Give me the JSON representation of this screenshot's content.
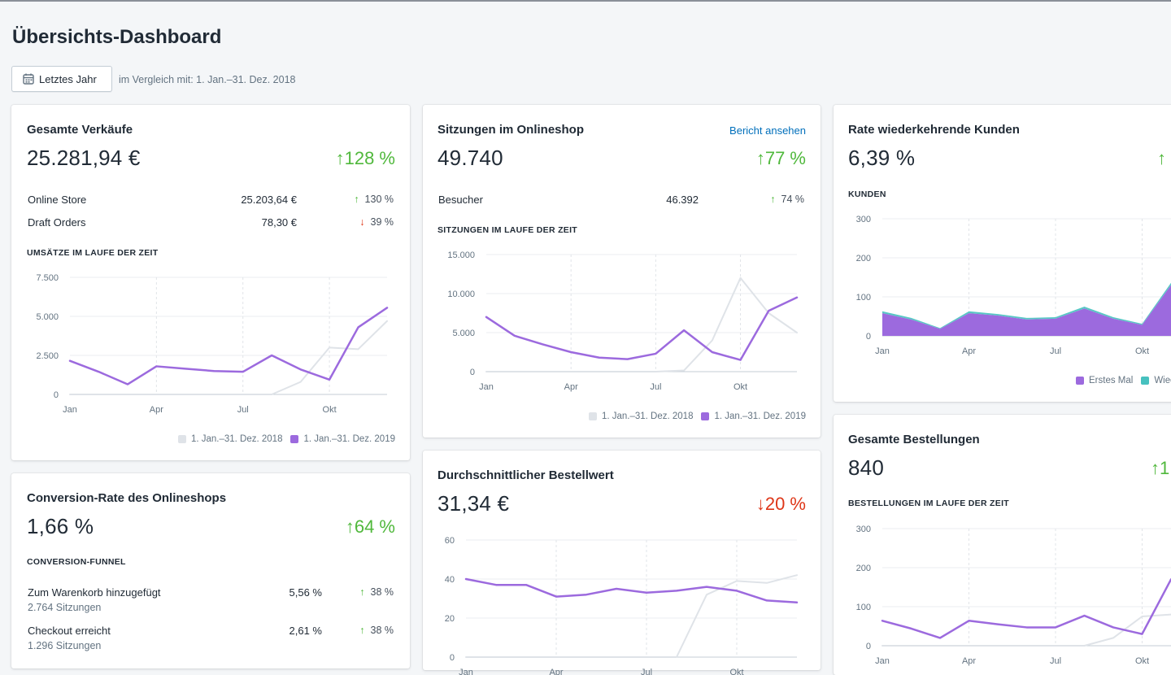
{
  "page": {
    "title": "Übersichts-Dashboard",
    "date_button": "Letztes Jahr",
    "compare_text": "im Vergleich mit: 1. Jan.–31. Dez. 2018"
  },
  "colors": {
    "series_current": "#9c6ade",
    "series_previous": "#dfe3e8",
    "teal": "#47c1bf",
    "up": "#50b83c",
    "down": "#de3618",
    "link": "#006fbb"
  },
  "sales": {
    "title": "Gesamte Verkäufe",
    "value": "25.281,94 €",
    "change": "↑128 %",
    "rows": [
      {
        "label": "Online Store",
        "value": "25.203,64 €",
        "change_arrow": "↑",
        "change": "130 %"
      },
      {
        "label": "Draft Orders",
        "value": "78,30 €",
        "change_arrow": "↓",
        "change": "39 %"
      }
    ],
    "section": "UMSÄTZE IM LAUFE DER ZEIT",
    "legend_prev": "1. Jan.–31. Dez. 2018",
    "legend_curr": "1. Jan.–31. Dez. 2019"
  },
  "sessions": {
    "title": "Sitzungen im Onlineshop",
    "link": "Bericht ansehen",
    "value": "49.740",
    "change": "↑77 %",
    "rows": [
      {
        "label": "Besucher",
        "value": "46.392",
        "change_arrow": "↑",
        "change": "74 %"
      }
    ],
    "section": "SITZUNGEN IM LAUFE DER ZEIT",
    "legend_prev": "1. Jan.–31. Dez. 2018",
    "legend_curr": "1. Jan.–31. Dez. 2019"
  },
  "returning": {
    "title": "Rate wiederkehrende Kunden",
    "value": "6,39 %",
    "change": "↑",
    "section": "KUNDEN",
    "legend_first": "Erstes Mal",
    "legend_return": "Wiede"
  },
  "conversion": {
    "title": "Conversion-Rate des Onlineshops",
    "value": "1,66 %",
    "change": "↑64 %",
    "section": "CONVERSION-FUNNEL",
    "rows": [
      {
        "label": "Zum Warenkorb hinzugefügt",
        "sub": "2.764 Sitzungen",
        "value": "5,56 %",
        "change_arrow": "↑",
        "change": "38 %"
      },
      {
        "label": "Checkout erreicht",
        "sub": "1.296 Sitzungen",
        "value": "2,61 %",
        "change_arrow": "↑",
        "change": "38 %"
      }
    ]
  },
  "aov": {
    "title": "Durchschnittlicher Bestellwert",
    "value": "31,34 €",
    "change": "↓20 %"
  },
  "orders": {
    "title": "Gesamte Bestellungen",
    "value": "840",
    "change": "↑1",
    "section": "BESTELLUNGEN IM LAUFE DER ZEIT"
  },
  "chart_data": [
    {
      "type": "line",
      "id": "sales",
      "x": [
        "Jan",
        "Feb",
        "Mär",
        "Apr",
        "Mai",
        "Jun",
        "Jul",
        "Aug",
        "Sep",
        "Okt",
        "Nov",
        "Dez"
      ],
      "xtick_labels": [
        "Jan",
        "Apr",
        "Jul",
        "Okt"
      ],
      "ylim": [
        0,
        7500
      ],
      "yticks": [
        0,
        2500,
        5000,
        7500
      ],
      "ytick_labels": [
        "0",
        "2.500",
        "5.000",
        "7.500"
      ],
      "series": [
        {
          "name": "1. Jan.–31. Dez. 2018",
          "values": [
            0,
            0,
            0,
            0,
            0,
            0,
            0,
            0,
            800,
            3000,
            2900,
            4700
          ]
        },
        {
          "name": "1. Jan.–31. Dez. 2019",
          "values": [
            2150,
            1450,
            650,
            1800,
            1650,
            1500,
            1450,
            2500,
            1600,
            950,
            4300,
            5550
          ]
        }
      ]
    },
    {
      "type": "line",
      "id": "sessions",
      "x": [
        "Jan",
        "Feb",
        "Mär",
        "Apr",
        "Mai",
        "Jun",
        "Jul",
        "Aug",
        "Sep",
        "Okt",
        "Nov",
        "Dez"
      ],
      "xtick_labels": [
        "Jan",
        "Apr",
        "Jul",
        "Okt"
      ],
      "ylim": [
        0,
        15000
      ],
      "yticks": [
        0,
        5000,
        10000,
        15000
      ],
      "ytick_labels": [
        "0",
        "5.000",
        "10.000",
        "15.000"
      ],
      "series": [
        {
          "name": "1. Jan.–31. Dez. 2018",
          "values": [
            0,
            0,
            0,
            0,
            0,
            0,
            0,
            150,
            4000,
            12000,
            7500,
            5000
          ]
        },
        {
          "name": "1. Jan.–31. Dez. 2019",
          "values": [
            7000,
            4600,
            3500,
            2500,
            1800,
            1600,
            2300,
            5300,
            2500,
            1500,
            7800,
            9500
          ]
        }
      ]
    },
    {
      "type": "area",
      "id": "returning",
      "x": [
        "Jan",
        "Feb",
        "Mär",
        "Apr",
        "Mai",
        "Jun",
        "Jul",
        "Aug",
        "Sep",
        "Okt",
        "Nov"
      ],
      "xtick_labels": [
        "Jan",
        "Apr",
        "Jul",
        "Okt"
      ],
      "ylim": [
        0,
        300
      ],
      "yticks": [
        0,
        100,
        200,
        300
      ],
      "ytick_labels": [
        "0",
        "100",
        "200",
        "300"
      ],
      "series": [
        {
          "name": "Erstes Mal",
          "values": [
            58,
            42,
            18,
            58,
            52,
            42,
            44,
            70,
            44,
            28,
            130
          ]
        },
        {
          "name": "Wiede",
          "values": [
            5,
            4,
            2,
            5,
            4,
            4,
            4,
            5,
            4,
            3,
            6
          ]
        }
      ]
    },
    {
      "type": "line",
      "id": "aov",
      "x": [
        "Jan",
        "Feb",
        "Mär",
        "Apr",
        "Mai",
        "Jun",
        "Jul",
        "Aug",
        "Sep",
        "Okt",
        "Nov",
        "Dez"
      ],
      "xtick_labels": [
        "Jan",
        "Apr",
        "Jul",
        "Okt"
      ],
      "ylim": [
        0,
        60
      ],
      "yticks": [
        0,
        20,
        40,
        60
      ],
      "ytick_labels": [
        "0",
        "20",
        "40",
        "60"
      ],
      "series": [
        {
          "name": "1. Jan.–31. Dez. 2018",
          "values": [
            0,
            0,
            0,
            0,
            0,
            0,
            0,
            0,
            32,
            39,
            38,
            42
          ]
        },
        {
          "name": "1. Jan.–31. Dez. 2019",
          "values": [
            40,
            37,
            37,
            31,
            32,
            35,
            33,
            34,
            36,
            34,
            29,
            28
          ]
        }
      ]
    },
    {
      "type": "line",
      "id": "orders",
      "x": [
        "Jan",
        "Feb",
        "Mär",
        "Apr",
        "Mai",
        "Jun",
        "Jul",
        "Aug",
        "Sep",
        "Okt",
        "Nov"
      ],
      "xtick_labels": [
        "Jan",
        "Apr",
        "Jul",
        "Okt"
      ],
      "ylim": [
        0,
        300
      ],
      "yticks": [
        0,
        100,
        200,
        300
      ],
      "ytick_labels": [
        "0",
        "100",
        "200",
        "300"
      ],
      "series": [
        {
          "name": "1. Jan.–31. Dez. 2018",
          "values": [
            0,
            0,
            0,
            0,
            0,
            0,
            0,
            0,
            20,
            75,
            80
          ]
        },
        {
          "name": "1. Jan.–31. Dez. 2019",
          "values": [
            64,
            44,
            20,
            64,
            55,
            47,
            47,
            77,
            47,
            30,
            170
          ]
        }
      ]
    }
  ]
}
